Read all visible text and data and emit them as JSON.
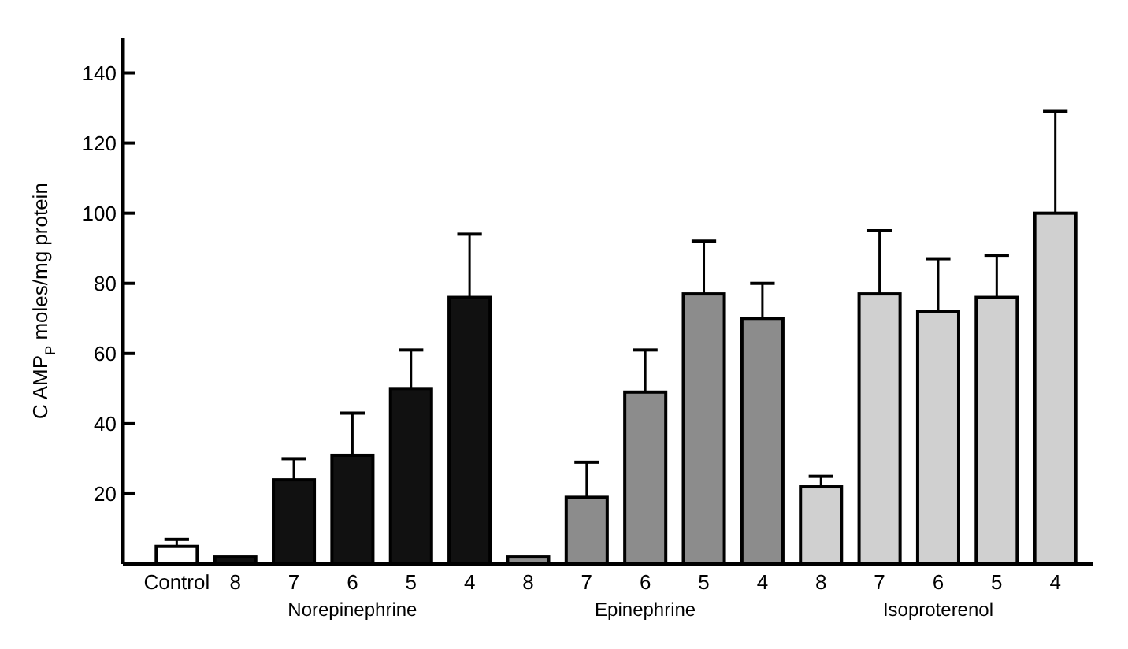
{
  "chart_data": {
    "type": "bar",
    "ylabel": "C AMP$_{P}$ moles/mg protein",
    "categories": [
      "Control",
      "8",
      "7",
      "6",
      "5",
      "4",
      "8",
      "7",
      "6",
      "5",
      "4",
      "8",
      "7",
      "6",
      "5",
      "4"
    ],
    "series": [
      {
        "color": "#ffffff",
        "values": [
          5,
          null,
          null,
          null,
          null,
          null,
          null,
          null,
          null,
          null,
          null,
          null,
          null,
          null,
          null,
          null
        ],
        "errors": [
          [
            5,
            7
          ],
          null,
          null,
          null,
          null,
          null,
          null,
          null,
          null,
          null,
          null,
          null,
          null,
          null,
          null,
          null
        ]
      },
      {
        "name": "Norepinephrine",
        "color": "#111111",
        "values": [
          null,
          2,
          24,
          31,
          50,
          76,
          null,
          null,
          null,
          null,
          null,
          null,
          null,
          null,
          null,
          null
        ],
        "errors": [
          null,
          null,
          [
            24,
            30
          ],
          [
            31,
            43
          ],
          [
            50,
            61
          ],
          [
            76,
            94
          ],
          null,
          null,
          null,
          null,
          null,
          null,
          null,
          null,
          null,
          null
        ]
      },
      {
        "name": "Epinephrine",
        "color": "#8c8c8c",
        "values": [
          null,
          null,
          null,
          null,
          null,
          null,
          2,
          19,
          49,
          77,
          70,
          null,
          null,
          null,
          null,
          null
        ],
        "errors": [
          null,
          null,
          null,
          null,
          null,
          null,
          null,
          [
            19,
            29
          ],
          [
            49,
            61
          ],
          [
            77,
            92
          ],
          [
            70,
            80
          ],
          null,
          null,
          null,
          null,
          null
        ]
      },
      {
        "name": "Isoproterenol",
        "color": "#d0d0d0",
        "values": [
          null,
          null,
          null,
          null,
          null,
          null,
          null,
          null,
          null,
          null,
          null,
          22,
          77,
          72,
          76,
          100
        ],
        "errors": [
          null,
          null,
          null,
          null,
          null,
          null,
          null,
          null,
          null,
          null,
          null,
          [
            22,
            25
          ],
          [
            77,
            95
          ],
          [
            72,
            87
          ],
          [
            76,
            88
          ],
          [
            100,
            129
          ]
        ]
      }
    ],
    "ylim": [
      0,
      150
    ],
    "yticks": [
      20,
      40,
      60,
      80,
      100,
      120,
      140
    ]
  }
}
